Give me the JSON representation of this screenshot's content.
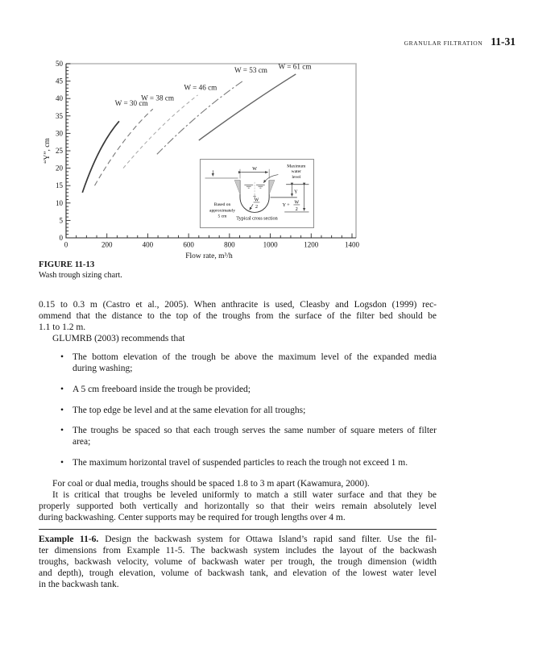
{
  "header": {
    "running_title": "GRANULAR FILTRATION",
    "page_number": "11-31"
  },
  "figure": {
    "label": "FIGURE 11-13",
    "caption": "Wash trough sizing chart."
  },
  "chart_data": {
    "type": "line",
    "title": "",
    "xlabel": "Flow rate, m³/h",
    "ylabel": "“Y”, cm",
    "xlim": [
      0,
      1400
    ],
    "ylim": [
      0,
      50
    ],
    "x_major_step": 200,
    "x_minor_step": 50,
    "y_major_step": 5,
    "y_minor_step": 1,
    "grid": false,
    "legend_position": "labels-on-curves",
    "frame_color": "#b6b6b6",
    "axis_color": "#2a2a2a",
    "series": [
      {
        "name": "W = 30 cm",
        "style": "solid",
        "color": "#383838",
        "width": 1.7,
        "x": [
          80,
          165,
          260
        ],
        "y": [
          13,
          25,
          33.5
        ],
        "label_pos": [
          320,
          38
        ]
      },
      {
        "name": "W = 38 cm",
        "style": "dashed",
        "color": "#787878",
        "width": 1.1,
        "x": [
          140,
          280,
          425
        ],
        "y": [
          15,
          27.5,
          37
        ],
        "label_pos": [
          448,
          39.5
        ]
      },
      {
        "name": "W = 46 cm",
        "style": "dashed-light",
        "color": "#a6a6a6",
        "width": 1.0,
        "x": [
          280,
          460,
          645
        ],
        "y": [
          20,
          31.5,
          41
        ],
        "label_pos": [
          658,
          42.5
        ]
      },
      {
        "name": "W = 53 cm",
        "style": "dash-dot",
        "color": "#7a7a7a",
        "width": 1.1,
        "x": [
          445,
          655,
          865
        ],
        "y": [
          24,
          35.5,
          45
        ],
        "label_pos": [
          905,
          47.5
        ]
      },
      {
        "name": "W = 61 cm",
        "style": "solid",
        "color": "#646464",
        "width": 1.4,
        "x": [
          650,
          890,
          1125
        ],
        "y": [
          28,
          38,
          47
        ],
        "label_pos": [
          1120,
          48.5
        ]
      }
    ],
    "inset": {
      "w": "W",
      "max1": "Maximum",
      "max2": "water",
      "max3": "level",
      "based1": "Based on",
      "based2": "approximately",
      "based3": "5 cm",
      "y": "Y",
      "y_plus": "Y +",
      "frac_num": "W",
      "frac_den": "2",
      "inner_num": "W",
      "inner_den": "2",
      "caption": "Typical cross section"
    }
  },
  "body": {
    "para1_lines": [
      "0.15 to 0.3 m (Castro et al., 2005). When anthracite is used, Cleasby and Logsdon (1999) rec-",
      "ommend that the distance to the top of the troughs from the surface of the filter bed should be",
      "1.1 to 1.2 m."
    ],
    "glumrb": "GLUMRB (2003) recommends that",
    "bullets": [
      {
        "lines": [
          "The bottom elevation of the trough be above the maximum level of the expanded media",
          "during washing;"
        ]
      },
      {
        "lines": [
          "A 5 cm freeboard inside the trough be provided;"
        ]
      },
      {
        "lines": [
          "The top edge be level and at the same elevation for all troughs;"
        ]
      },
      {
        "lines": [
          "The troughs be spaced so that each trough serves the same number of square meters of filter",
          "area;"
        ]
      },
      {
        "lines": [
          "The maximum horizontal travel of suspended particles to reach the trough not exceed 1 m."
        ]
      }
    ],
    "kawamura": "For coal or dual media, troughs should be spaced 1.8 to 3 m apart (Kawamura, 2000).",
    "para3_lines": [
      "It is critical that troughs be leveled uniformly to match a still water surface and that they be",
      "properly supported both vertically and horizontally so that their weirs remain absolutely level",
      "during backwashing. Center supports may be required for trough lengths over 4 m."
    ]
  },
  "example": {
    "label": "Example 11-6.",
    "first_line": "Design the backwash system for Ottawa Island’s rapid sand filter. Use the fil-",
    "rest_lines": [
      "ter dimensions from Example 11-5. The backwash system includes the layout of the backwash",
      "troughs, backwash velocity, volume of backwash water per trough, the trough dimension (width",
      "and depth), trough elevation, volume of backwash tank, and elevation of the lowest water level",
      "in the backwash tank."
    ]
  }
}
